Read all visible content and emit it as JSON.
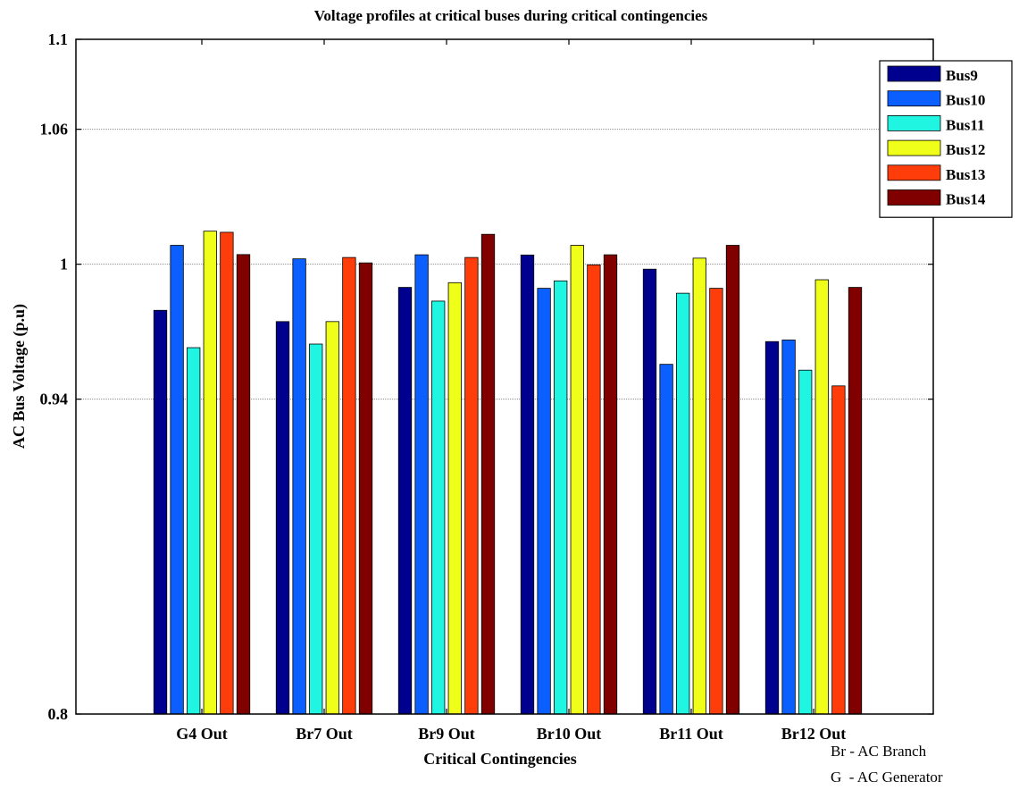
{
  "chart_data": {
    "type": "bar",
    "title": "Voltage profiles at critical buses during critical contingencies",
    "xlabel": "Critical Contingencies",
    "ylabel": "AC Bus Voltage (p.u)",
    "ylim": [
      0.8,
      1.1
    ],
    "yticks": [
      0.8,
      0.94,
      1,
      1.06,
      1.1
    ],
    "ytick_labels": [
      "0.8",
      "0.94",
      "1",
      "1.06",
      "1.1"
    ],
    "grid": "horizontal dotted",
    "legend_position": "top-right",
    "categories": [
      "G4 Out",
      "Br7 Out",
      "Br9 Out",
      "Br10 Out",
      "Br11 Out",
      "Br12 Out"
    ],
    "series": [
      {
        "name": "Bus9",
        "color": "#00008f",
        "values": [
          0.9795,
          0.9745,
          0.9897,
          1.0041,
          0.9978,
          0.9656
        ]
      },
      {
        "name": "Bus10",
        "color": "#0b5fff",
        "values": [
          1.0084,
          1.0024,
          1.0042,
          0.9893,
          0.9555,
          0.9663
        ]
      },
      {
        "name": "Bus11",
        "color": "#1ff5e0",
        "values": [
          0.9629,
          0.9645,
          0.9836,
          0.9926,
          0.9871,
          0.9529
        ]
      },
      {
        "name": "Bus12",
        "color": "#f0ff1a",
        "values": [
          1.0147,
          0.9745,
          0.9918,
          1.0084,
          1.0027,
          0.9931
        ]
      },
      {
        "name": "Bus13",
        "color": "#ff3d0b",
        "values": [
          1.0142,
          1.003,
          1.003,
          0.9997,
          0.9893,
          0.9459
        ]
      },
      {
        "name": "Bus14",
        "color": "#800000",
        "values": [
          1.0043,
          1.0006,
          1.0133,
          1.0042,
          1.0084,
          0.9897
        ]
      }
    ]
  },
  "notes": [
    "Br - AC Branch",
    "G  - AC Generator"
  ]
}
